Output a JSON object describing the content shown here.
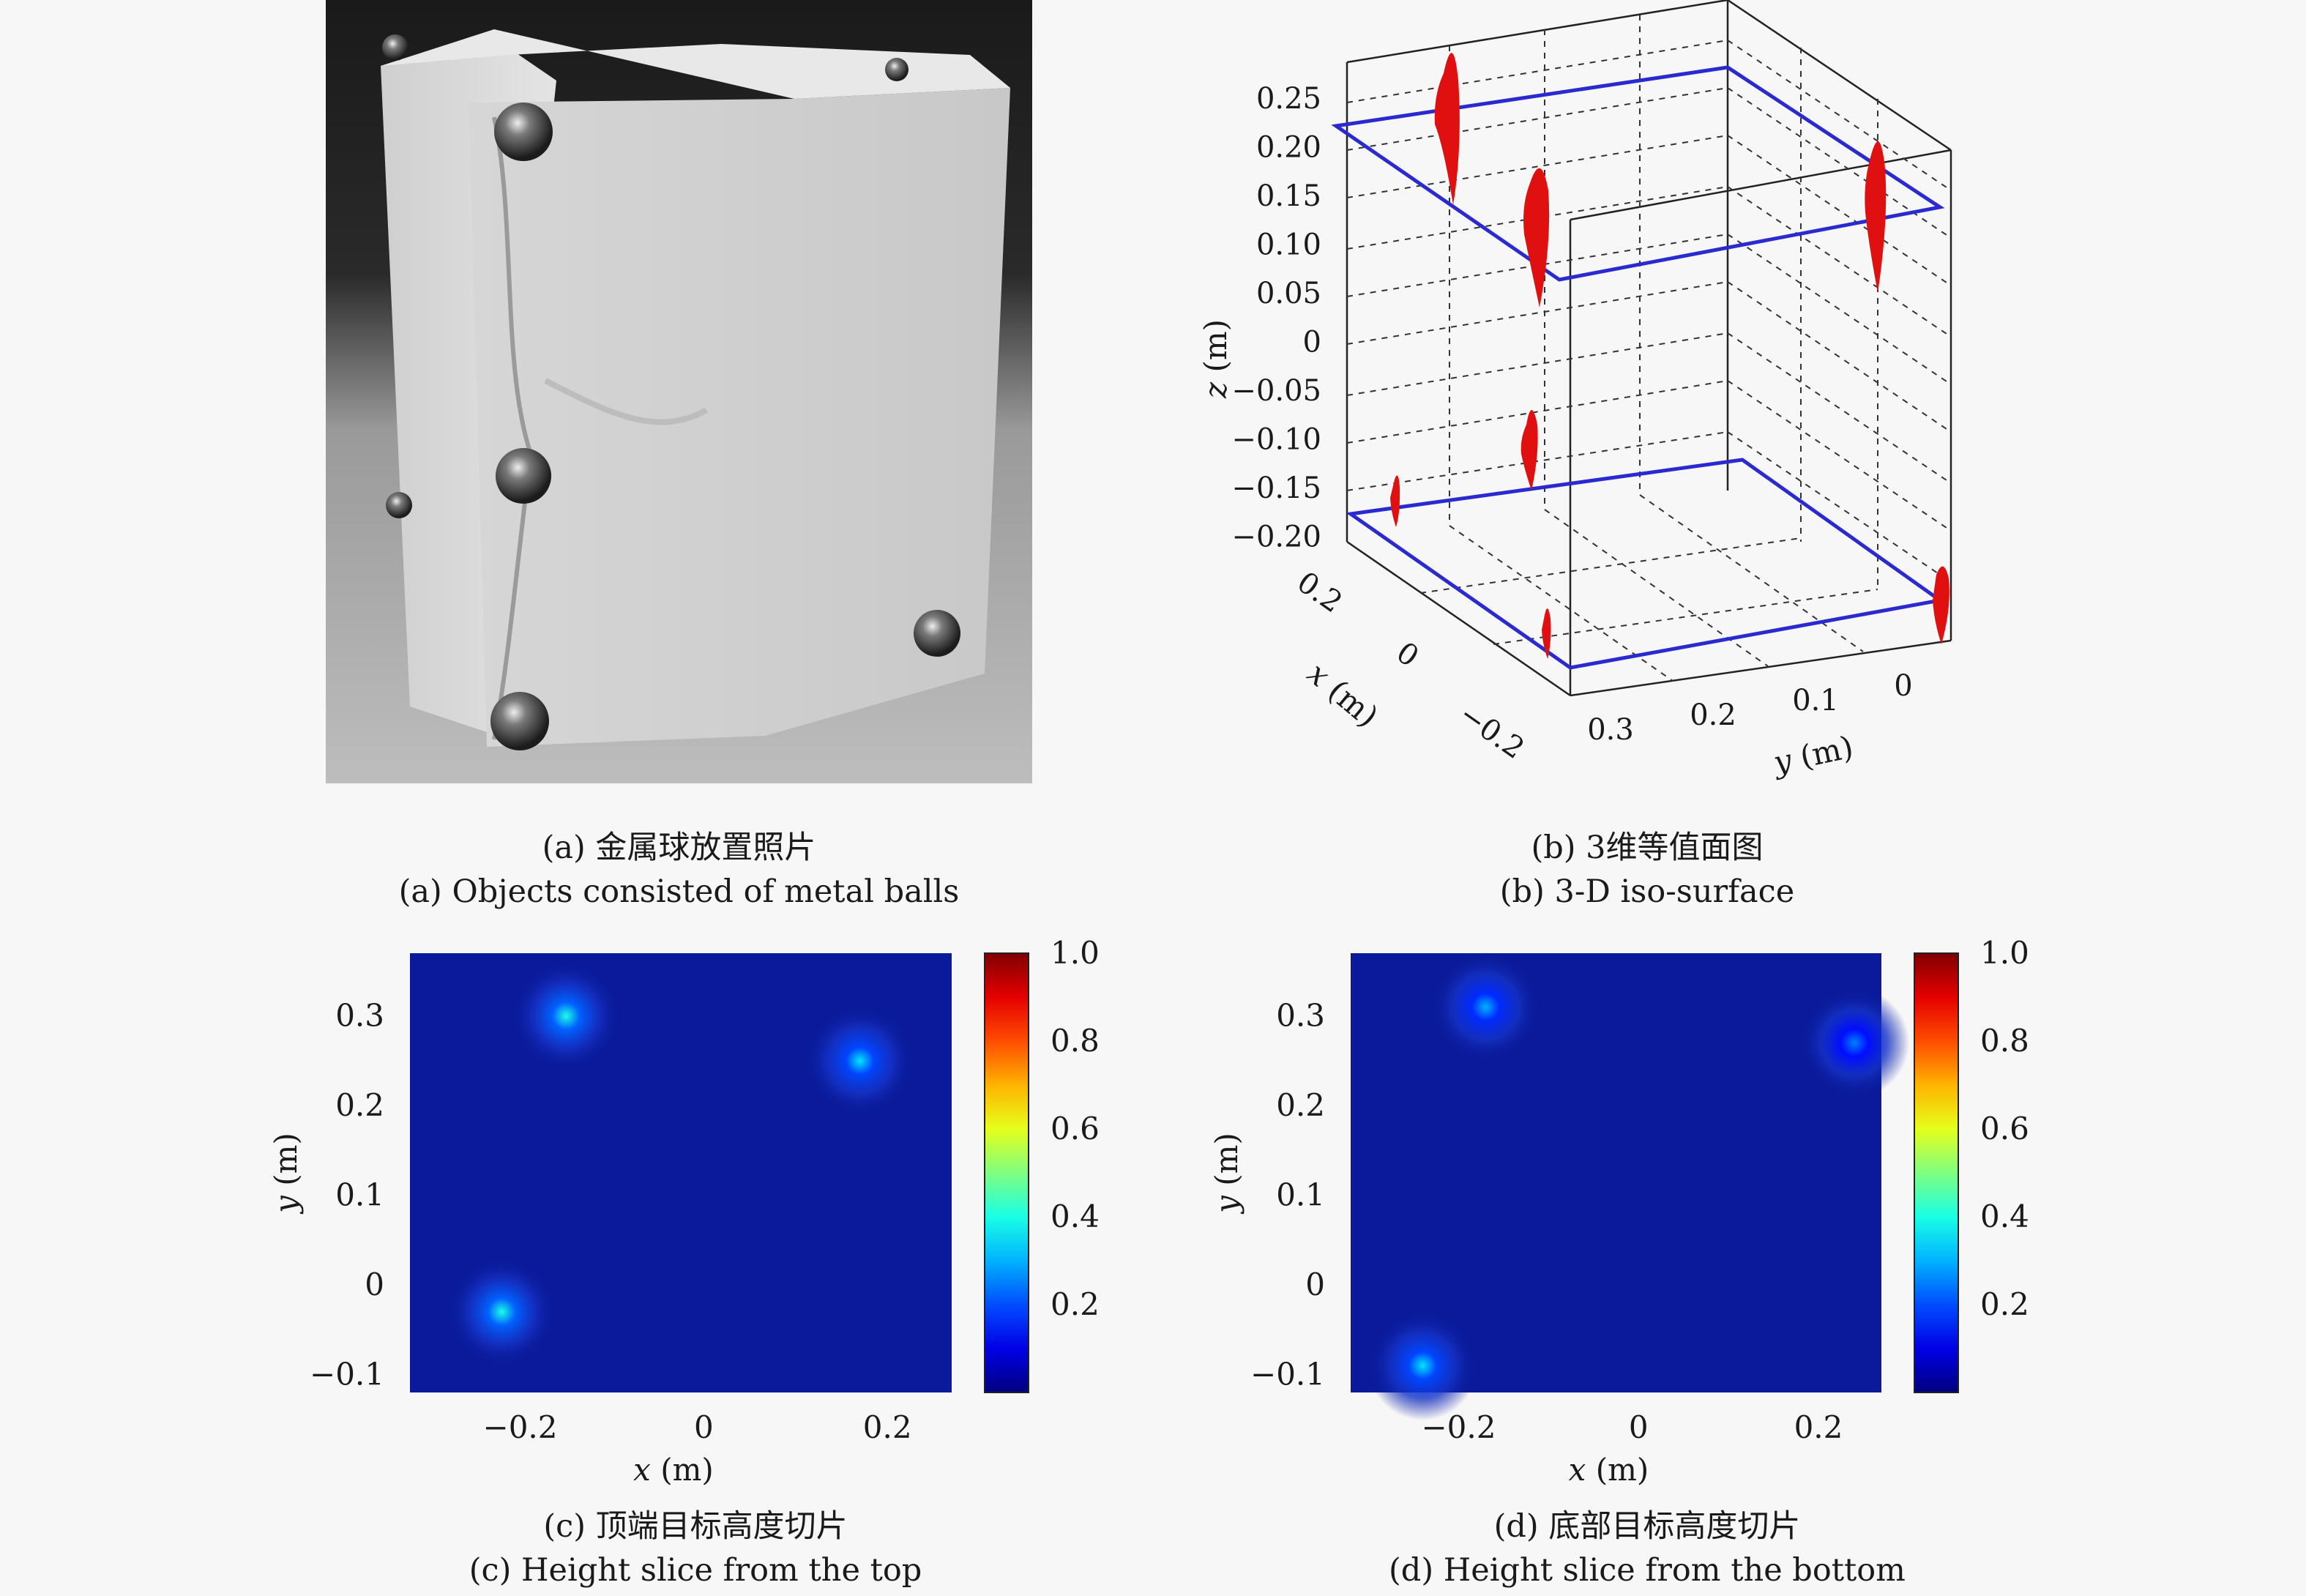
{
  "figures": {
    "a": {
      "caption_zh": "(a) 金属球放置照片",
      "caption_en": "(a) Objects consisted of metal balls"
    },
    "b": {
      "caption_zh": "(b) 3维等值面图",
      "caption_en": "(b) 3-D iso-surface",
      "z_ticks": [
        "0.25",
        "0.20",
        "0.15",
        "0.10",
        "0.05",
        "0",
        "−0.05",
        "−0.10",
        "−0.15",
        "−0.20"
      ],
      "x_ticks": [
        "0.2",
        "0",
        "−0.2"
      ],
      "y_ticks": [
        "0.3",
        "0.2",
        "0.1",
        "0"
      ],
      "xlabel_var": "x",
      "xlabel_unit": "(m)",
      "ylabel_var": "y",
      "ylabel_unit": "(m)",
      "zlabel_var": "z",
      "zlabel_unit": "(m)"
    },
    "c": {
      "caption_zh": "(c) 顶端目标高度切片",
      "caption_en": "(c) Height slice from the top",
      "y_ticks": [
        "0.3",
        "0.2",
        "0.1",
        "0",
        "−0.1"
      ],
      "x_ticks": [
        "−0.2",
        "0",
        "0.2"
      ],
      "cbar_ticks": [
        "1.0",
        "0.8",
        "0.6",
        "0.4",
        "0.2"
      ],
      "xlabel_var": "x",
      "xlabel_unit": "(m)",
      "ylabel_var": "y",
      "ylabel_unit": "(m)"
    },
    "d": {
      "caption_zh": "(d) 底部目标高度切片",
      "caption_en": "(d) Height slice from the bottom",
      "y_ticks": [
        "0.3",
        "0.2",
        "0.1",
        "0",
        "−0.1"
      ],
      "x_ticks": [
        "−0.2",
        "0",
        "0.2"
      ],
      "cbar_ticks": [
        "1.0",
        "0.8",
        "0.6",
        "0.4",
        "0.2"
      ],
      "xlabel_var": "x",
      "xlabel_unit": "(m)",
      "ylabel_var": "y",
      "ylabel_unit": "(m)"
    }
  },
  "chart_data": [
    {
      "type": "heatmap",
      "panel": "c",
      "x_range": [
        -0.32,
        0.27
      ],
      "y_range": [
        -0.12,
        0.37
      ],
      "colormap": "jet",
      "color_range": [
        0,
        1.0
      ],
      "hot_spots": [
        {
          "x": -0.15,
          "y": 0.3,
          "intensity": 0.4
        },
        {
          "x": 0.17,
          "y": 0.25,
          "intensity": 0.35
        },
        {
          "x": -0.22,
          "y": -0.03,
          "intensity": 0.4
        }
      ]
    },
    {
      "type": "heatmap",
      "panel": "d",
      "x_range": [
        -0.32,
        0.27
      ],
      "y_range": [
        -0.12,
        0.37
      ],
      "colormap": "jet",
      "color_range": [
        0,
        1.0
      ],
      "hot_spots": [
        {
          "x": -0.17,
          "y": 0.31,
          "intensity": 0.3
        },
        {
          "x": 0.24,
          "y": 0.27,
          "intensity": 0.25
        },
        {
          "x": -0.24,
          "y": -0.09,
          "intensity": 0.35
        }
      ]
    }
  ],
  "colors": {
    "iso_surface": "#e01010",
    "outline": "#2a2ad0",
    "heatmap_bg": "#0a1a9a"
  }
}
